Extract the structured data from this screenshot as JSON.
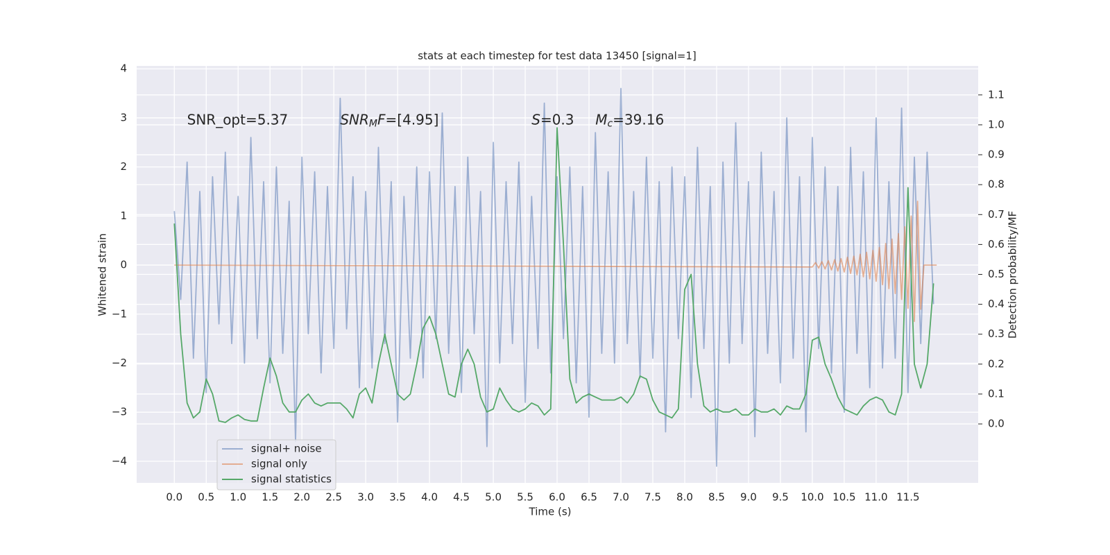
{
  "chart_data": {
    "type": "line",
    "title": "stats at each timestep for test data 13450 [signal=1]",
    "xlabel": "Time (s)",
    "ylabel": "Whitened strain",
    "y2label": "Detection probability/MF",
    "xlim": [
      -0.59,
      12.6
    ],
    "ylim": [
      -4.44,
      4.06
    ],
    "y2lim": [
      -0.197,
      1.197
    ],
    "grid": true,
    "legend": "lower left",
    "xticks": [
      {
        "value": 0,
        "label": "0.0"
      },
      {
        "value": 0.5,
        "label": "0.5"
      },
      {
        "value": 1,
        "label": "1.0"
      },
      {
        "value": 1.5,
        "label": "1.5"
      },
      {
        "value": 2,
        "label": "2.0"
      },
      {
        "value": 2.5,
        "label": "2.5"
      },
      {
        "value": 3,
        "label": "3.0"
      },
      {
        "value": 3.5,
        "label": "3.5"
      },
      {
        "value": 4,
        "label": "4.0"
      },
      {
        "value": 4.5,
        "label": "4.5"
      },
      {
        "value": 5,
        "label": "5.0"
      },
      {
        "value": 5.5,
        "label": "5.5"
      },
      {
        "value": 6,
        "label": "6.0"
      },
      {
        "value": 6.5,
        "label": "6.5"
      },
      {
        "value": 7,
        "label": "7.0"
      },
      {
        "value": 7.5,
        "label": "7.5"
      },
      {
        "value": 8,
        "label": "8.0"
      },
      {
        "value": 8.5,
        "label": "8.5"
      },
      {
        "value": 9,
        "label": "9.0"
      },
      {
        "value": 9.5,
        "label": "9.5"
      },
      {
        "value": 10,
        "label": "10.0"
      },
      {
        "value": 10.5,
        "label": "10.5"
      },
      {
        "value": 11,
        "label": "11.0"
      },
      {
        "value": 11.5,
        "label": "11.5"
      }
    ],
    "yticks": [
      {
        "value": -4,
        "label": "−4"
      },
      {
        "value": -3,
        "label": "−3"
      },
      {
        "value": -2,
        "label": "−2"
      },
      {
        "value": -1,
        "label": "−1"
      },
      0,
      1,
      2,
      3,
      4
    ],
    "y2ticks": [
      {
        "value": 0,
        "label": "0.0"
      },
      {
        "value": 0.1,
        "label": "0.1"
      },
      {
        "value": 0.2,
        "label": "0.2"
      },
      {
        "value": 0.3,
        "label": "0.3"
      },
      {
        "value": 0.4,
        "label": "0.4"
      },
      {
        "value": 0.5,
        "label": "0.5"
      },
      {
        "value": 0.6,
        "label": "0.6"
      },
      {
        "value": 0.7,
        "label": "0.7"
      },
      {
        "value": 0.8,
        "label": "0.8"
      },
      {
        "value": 0.9,
        "label": "0.9"
      },
      {
        "value": 1,
        "label": "1.0"
      },
      {
        "value": 1.1,
        "label": "1.1"
      }
    ],
    "annotations": [
      {
        "x": 0.2,
        "y": 2.95,
        "parts": [
          {
            "text": "SNR_opt=5.37"
          }
        ]
      },
      {
        "x": 2.6,
        "y": 2.95,
        "parts": [
          {
            "text": "SNR",
            "italic": true
          },
          {
            "text": "M",
            "italic": true,
            "sub": true
          },
          {
            "text": "F",
            "italic": true
          },
          {
            "text": "=[4.95]"
          }
        ]
      },
      {
        "x": 5.6,
        "y": 2.95,
        "parts": [
          {
            "text": "S",
            "italic": true
          },
          {
            "text": "=0.3"
          }
        ]
      },
      {
        "x": 6.6,
        "y": 2.95,
        "parts": [
          {
            "text": "M",
            "italic": true
          },
          {
            "text": "c",
            "italic": true,
            "sub": true
          },
          {
            "text": "=39.16"
          }
        ]
      }
    ],
    "x": [
      0.0,
      0.1,
      0.2,
      0.3,
      0.4,
      0.5,
      0.6,
      0.7,
      0.8,
      0.9,
      1.0,
      1.1,
      1.2,
      1.3,
      1.4,
      1.5,
      1.6,
      1.7,
      1.8,
      1.9,
      2.0,
      2.1,
      2.2,
      2.3,
      2.4,
      2.5,
      2.6,
      2.7,
      2.8,
      2.9,
      3.0,
      3.1,
      3.2,
      3.3,
      3.4,
      3.5,
      3.6,
      3.7,
      3.8,
      3.9,
      4.0,
      4.1,
      4.2,
      4.3,
      4.4,
      4.5,
      4.6,
      4.7,
      4.8,
      4.9,
      5.0,
      5.1,
      5.2,
      5.3,
      5.4,
      5.5,
      5.6,
      5.7,
      5.8,
      5.9,
      6.0,
      6.1,
      6.2,
      6.3,
      6.4,
      6.5,
      6.6,
      6.7,
      6.8,
      6.9,
      7.0,
      7.1,
      7.2,
      7.3,
      7.4,
      7.5,
      7.6,
      7.7,
      7.8,
      7.9,
      8.0,
      8.1,
      8.2,
      8.3,
      8.4,
      8.5,
      8.6,
      8.7,
      8.8,
      8.9,
      9.0,
      9.1,
      9.2,
      9.3,
      9.4,
      9.5,
      9.6,
      9.7,
      9.8,
      9.9,
      10.0,
      10.1,
      10.2,
      10.3,
      10.4,
      10.5,
      10.6,
      10.7,
      10.8,
      10.9,
      11.0,
      11.1,
      11.2,
      11.3,
      11.4,
      11.5,
      11.6,
      11.7,
      11.8,
      11.9
    ],
    "series": [
      {
        "name": "signal+ noise",
        "color": "#4c72b0",
        "opacity": 0.5,
        "values": [
          1.1,
          -0.7,
          2.1,
          -1.9,
          1.5,
          -2.6,
          1.8,
          -1.2,
          2.3,
          -1.6,
          1.4,
          -2.0,
          2.6,
          -1.5,
          1.7,
          -2.4,
          2.0,
          -1.8,
          1.3,
          -3.6,
          2.2,
          -1.4,
          1.9,
          -2.2,
          1.6,
          -1.7,
          3.4,
          -1.3,
          1.8,
          -2.5,
          1.5,
          -2.1,
          2.4,
          -1.6,
          1.7,
          -3.2,
          1.4,
          -1.9,
          2.0,
          -2.3,
          1.9,
          -1.5,
          3.1,
          -1.8,
          1.6,
          -2.6,
          2.2,
          -1.4,
          1.5,
          -3.7,
          2.5,
          -2.0,
          1.7,
          -1.6,
          2.1,
          -2.8,
          1.4,
          -1.7,
          3.3,
          -2.2,
          1.8,
          -1.5,
          2.0,
          -2.4,
          1.6,
          -3.1,
          2.7,
          -1.8,
          1.9,
          -2.0,
          3.6,
          -1.6,
          1.5,
          -2.3,
          2.2,
          -1.9,
          1.7,
          -3.4,
          2.0,
          -1.5,
          1.8,
          -2.7,
          2.4,
          -1.7,
          1.6,
          -4.1,
          2.1,
          -2.0,
          2.9,
          -1.6,
          1.7,
          -3.5,
          2.3,
          -1.8,
          1.5,
          -2.4,
          3.0,
          -1.9,
          1.8,
          -3.4,
          2.6,
          -1.7,
          2.0,
          -2.2,
          1.6,
          -3.0,
          2.4,
          -1.8,
          1.9,
          -2.5,
          3.0,
          -2.1,
          1.7,
          -1.9,
          3.2,
          -2.6,
          2.2,
          -1.6,
          2.3,
          -0.8
        ]
      },
      {
        "name": "signal only",
        "color": "#dd8452",
        "opacity": 0.6,
        "x": [
          0,
          10.0,
          10.05,
          10.1,
          10.15,
          10.2,
          10.25,
          10.3,
          10.35,
          10.4,
          10.45,
          10.5,
          10.55,
          10.6,
          10.65,
          10.7,
          10.75,
          10.8,
          10.85,
          10.9,
          10.95,
          11.0,
          11.05,
          11.1,
          11.15,
          11.2,
          11.25,
          11.3,
          11.35,
          11.4,
          11.45,
          11.5,
          11.55,
          11.6,
          11.65,
          11.7,
          11.75,
          11.95
        ],
        "values": [
          0,
          -0.04,
          0.05,
          -0.06,
          0.07,
          -0.08,
          0.09,
          -0.1,
          0.11,
          -0.12,
          0.13,
          -0.14,
          0.16,
          -0.17,
          0.18,
          -0.2,
          0.22,
          -0.24,
          0.26,
          -0.28,
          0.3,
          -0.33,
          0.36,
          -0.4,
          0.44,
          -0.48,
          0.53,
          -0.58,
          0.64,
          -0.7,
          0.78,
          -0.88,
          1.0,
          -1.15,
          1.3,
          -0.9,
          0,
          0
        ]
      },
      {
        "name": "signal statistics",
        "color": "#55a868",
        "axis": "y2",
        "opacity": 1,
        "values": [
          0.67,
          0.3,
          0.07,
          0.02,
          0.04,
          0.15,
          0.1,
          0.01,
          0.005,
          0.02,
          0.03,
          0.015,
          0.01,
          0.01,
          0.12,
          0.22,
          0.16,
          0.07,
          0.04,
          0.04,
          0.08,
          0.1,
          0.07,
          0.06,
          0.07,
          0.07,
          0.07,
          0.05,
          0.02,
          0.1,
          0.12,
          0.07,
          0.2,
          0.3,
          0.2,
          0.1,
          0.08,
          0.1,
          0.2,
          0.32,
          0.36,
          0.3,
          0.2,
          0.1,
          0.09,
          0.2,
          0.25,
          0.2,
          0.09,
          0.04,
          0.05,
          0.12,
          0.08,
          0.05,
          0.04,
          0.05,
          0.07,
          0.06,
          0.03,
          0.05,
          0.99,
          0.6,
          0.15,
          0.07,
          0.09,
          0.1,
          0.09,
          0.08,
          0.08,
          0.08,
          0.09,
          0.07,
          0.1,
          0.16,
          0.15,
          0.08,
          0.04,
          0.03,
          0.02,
          0.05,
          0.45,
          0.5,
          0.2,
          0.06,
          0.04,
          0.05,
          0.04,
          0.04,
          0.05,
          0.03,
          0.03,
          0.05,
          0.04,
          0.04,
          0.05,
          0.03,
          0.06,
          0.05,
          0.05,
          0.1,
          0.28,
          0.29,
          0.2,
          0.15,
          0.09,
          0.05,
          0.04,
          0.03,
          0.06,
          0.08,
          0.09,
          0.08,
          0.04,
          0.03,
          0.1,
          0.79,
          0.2,
          0.12,
          0.2,
          0.47
        ]
      }
    ]
  }
}
